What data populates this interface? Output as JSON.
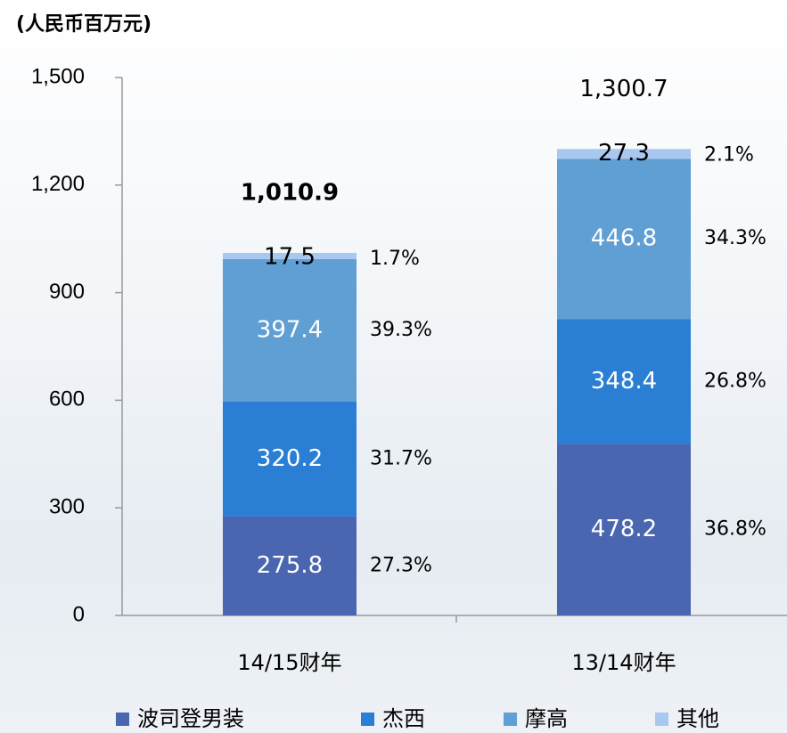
{
  "chart_data": {
    "type": "stacked_bar",
    "title": "(人民币百万元)",
    "categories": [
      "14/15财年",
      "13/14财年"
    ],
    "series": [
      {
        "name": "波司登男装",
        "color": "#4a66b0",
        "values": [
          275.8,
          478.2
        ],
        "shares": [
          27.3,
          36.8
        ],
        "share_labels": [
          "27.3%",
          "36.8%"
        ]
      },
      {
        "name": "杰西",
        "color": "#2a7fd4",
        "values": [
          320.2,
          348.4
        ],
        "shares": [
          31.7,
          26.8
        ],
        "share_labels": [
          "31.7%",
          "26.8%"
        ]
      },
      {
        "name": "摩高",
        "color": "#609fd4",
        "values": [
          397.4,
          446.8
        ],
        "shares": [
          39.3,
          34.3
        ],
        "share_labels": [
          "39.3%",
          "34.3%"
        ]
      },
      {
        "name": "其他",
        "color": "#a9c8f0",
        "values": [
          17.5,
          27.3
        ],
        "shares": [
          1.7,
          2.1
        ],
        "share_labels": [
          "1.7%",
          "2.1%"
        ]
      }
    ],
    "totals": [
      1010.9,
      1300.7
    ],
    "total_labels": [
      "1,010.9",
      "1,300.7"
    ],
    "ylim": [
      0,
      1500
    ],
    "yticks": [
      0,
      300,
      600,
      900,
      {
        "value": 1200,
        "label": "1,200"
      },
      {
        "value": 1500,
        "label": "1,500"
      }
    ]
  }
}
